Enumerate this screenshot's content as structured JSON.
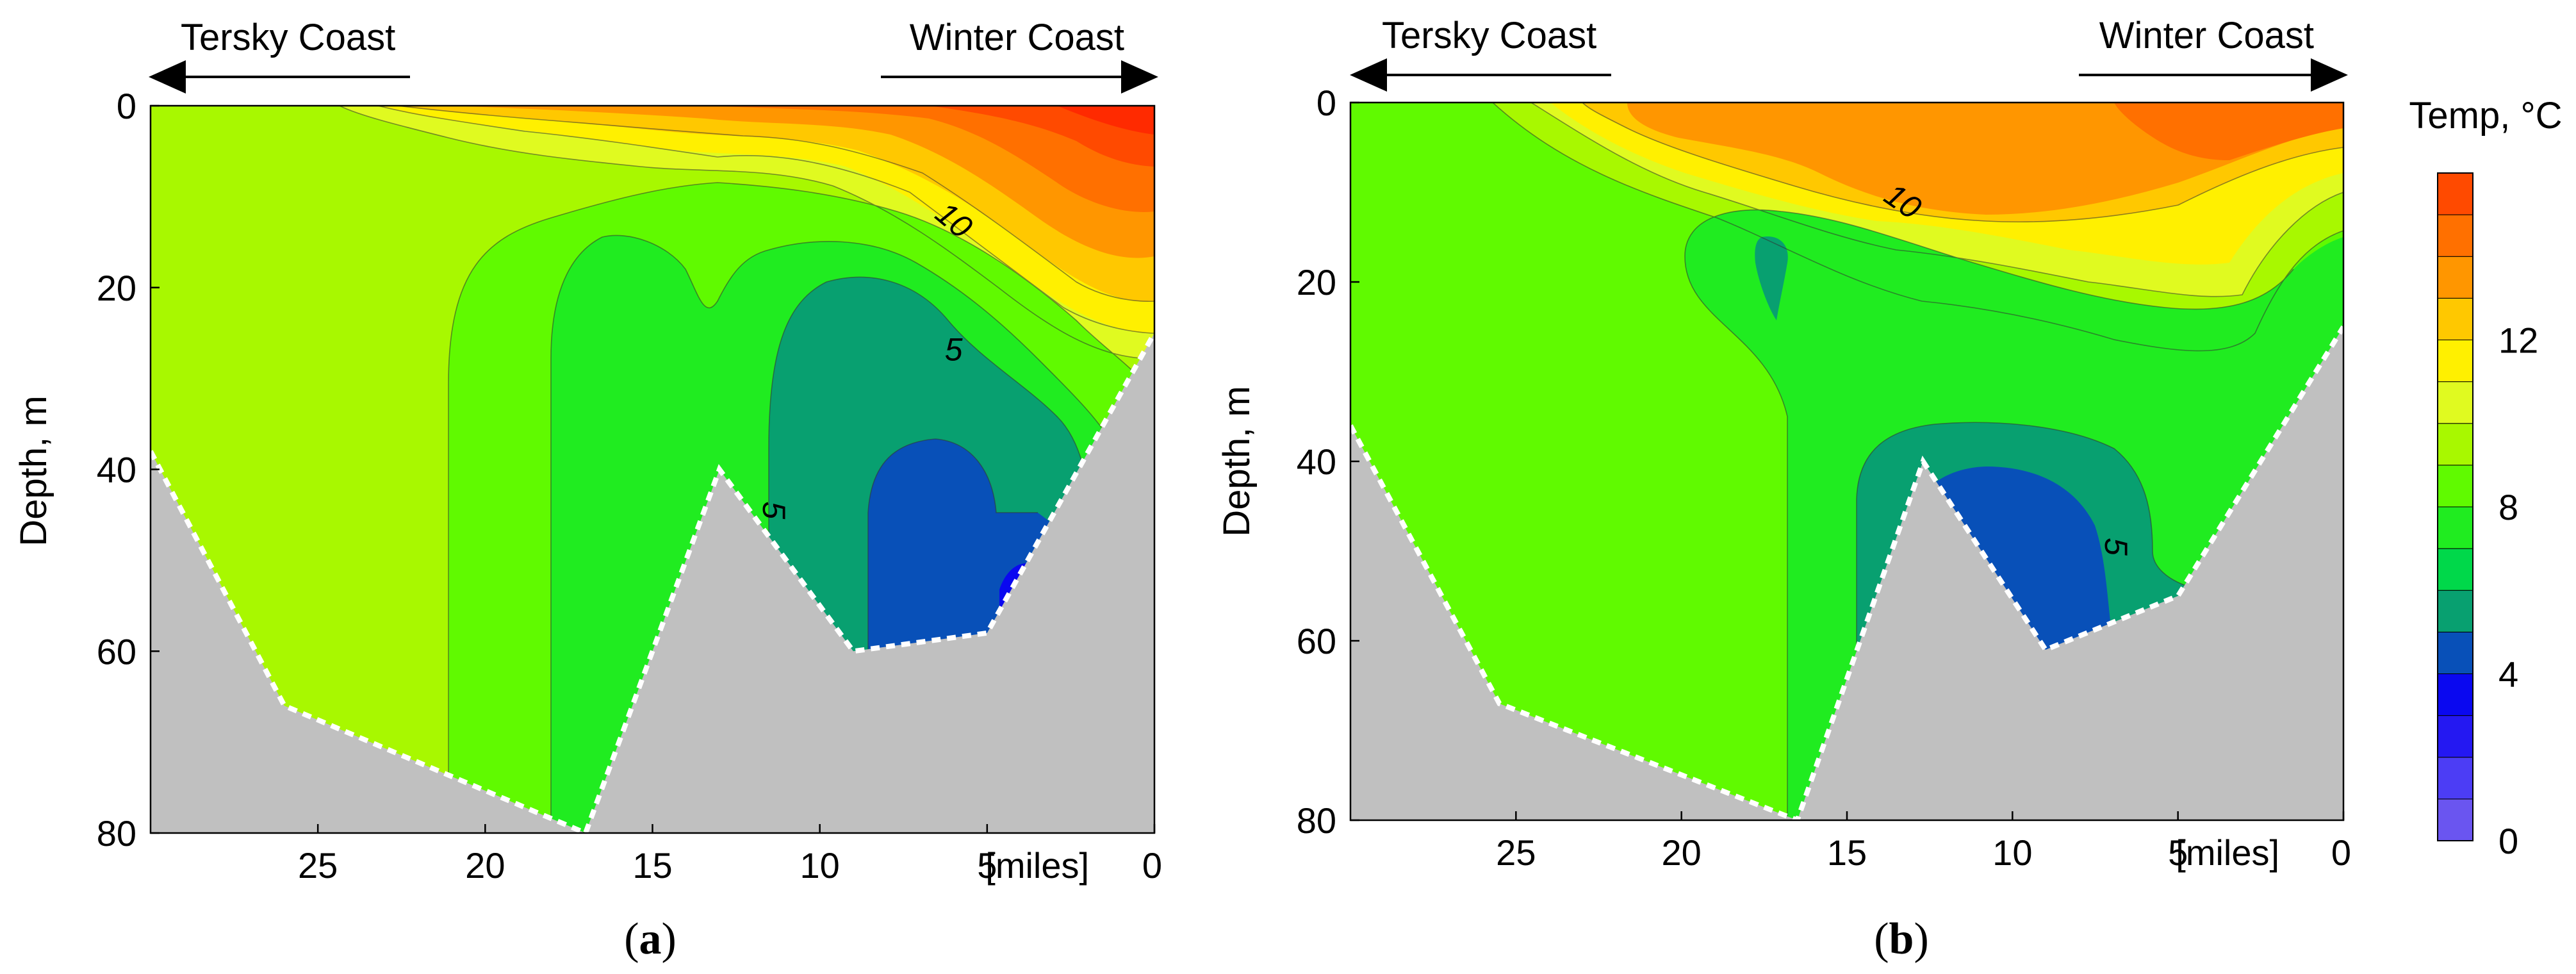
{
  "chart_data": [
    {
      "type": "heatmap",
      "id": "a",
      "panel_label": "(a)",
      "panel_letter": "a",
      "ylabel": "Depth, m",
      "x_unit_label": "[miles]",
      "xlim": [
        30,
        0
      ],
      "ylim": [
        0,
        80
      ],
      "x_ticks": [
        25,
        20,
        15,
        10,
        5,
        0
      ],
      "y_ticks": [
        0,
        20,
        40,
        60,
        80
      ],
      "arrow_left_label": "Tersky Coast",
      "arrow_right_label": "Winter Coast",
      "contour_labels": [
        {
          "text": "10",
          "x": 6.2,
          "y": 13.5,
          "angle": 40
        },
        {
          "text": "5",
          "x": 6.0,
          "y": 28.0,
          "angle": 0
        },
        {
          "text": "5",
          "x": 11.7,
          "y": 44.5,
          "angle": 90
        }
      ],
      "bottom_profile": [
        [
          30,
          38
        ],
        [
          26,
          66
        ],
        [
          17,
          80
        ],
        [
          13,
          40
        ],
        [
          9,
          60
        ],
        [
          5,
          58
        ],
        [
          0,
          25
        ]
      ]
    },
    {
      "type": "heatmap",
      "id": "b",
      "panel_label": "(b)",
      "panel_letter": "b",
      "ylabel": "Depth, m",
      "x_unit_label": "[miles]",
      "xlim": [
        30,
        0
      ],
      "ylim": [
        0,
        80
      ],
      "x_ticks": [
        25,
        20,
        15,
        10,
        5,
        0
      ],
      "y_ticks": [
        0,
        20,
        40,
        60,
        80
      ],
      "arrow_left_label": "Tersky Coast",
      "arrow_right_label": "Winter Coast",
      "contour_labels": [
        {
          "text": "10",
          "x": 13.5,
          "y": 12.0,
          "angle": 35
        },
        {
          "text": "5",
          "x": 7.2,
          "y": 49.5,
          "angle": 90
        }
      ],
      "bottom_profile": [
        [
          30,
          36
        ],
        [
          25.5,
          67
        ],
        [
          16.5,
          80
        ],
        [
          12.7,
          40
        ],
        [
          9,
          61
        ],
        [
          5,
          55
        ],
        [
          0,
          25
        ]
      ]
    }
  ],
  "colorbar": {
    "title": "Temp, °C",
    "ticks": [
      0,
      4,
      8,
      12
    ],
    "range": [
      0,
      16
    ],
    "step": 1,
    "colors": [
      "#6a55f0",
      "#4c3df5",
      "#2418f2",
      "#0a08f0",
      "#0850b8",
      "#08a070",
      "#00d84a",
      "#20ec20",
      "#60fa00",
      "#a8f800",
      "#e0fa20",
      "#fff000",
      "#ffc800",
      "#ff9600",
      "#ff7000",
      "#ff4a00"
    ]
  },
  "colors": {
    "ground": "#c0c0c0",
    "line": "#000000"
  }
}
